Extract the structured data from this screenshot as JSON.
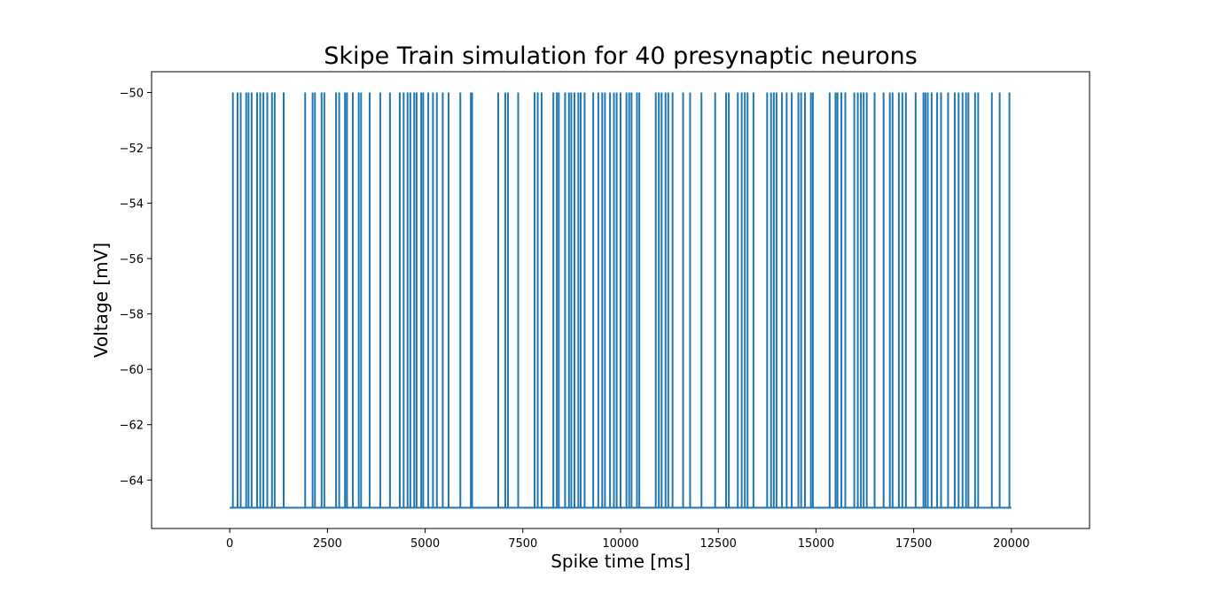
{
  "chart_data": {
    "type": "line",
    "title": "Skipe Train simulation for 40 presynaptic neurons",
    "xlabel": "Spike time [ms]",
    "ylabel": "Voltage [mV]",
    "xlim": [
      -2000,
      22000
    ],
    "ylim": [
      -65.75,
      -49.25
    ],
    "xticks": [
      0,
      2500,
      5000,
      7500,
      10000,
      12500,
      15000,
      17500,
      20000
    ],
    "yticks": [
      -50,
      -52,
      -54,
      -56,
      -58,
      -60,
      -62,
      -64
    ],
    "ytick_labels": [
      "−50",
      "−52",
      "−54",
      "−56",
      "−58",
      "−60",
      "−62",
      "−64"
    ],
    "grid": false,
    "legend": "none",
    "series": [
      {
        "color": "#1f77b4",
        "baseline": -65,
        "peak": -50,
        "x_start": 0,
        "x_end": 20000,
        "spike_times": [
          80,
          200,
          280,
          420,
          480,
          560,
          700,
          780,
          860,
          960,
          1080,
          1150,
          1380,
          1930,
          2120,
          2180,
          2350,
          2420,
          2720,
          2800,
          2950,
          3000,
          3150,
          3300,
          3360,
          3580,
          3850,
          4100,
          4350,
          4450,
          4550,
          4620,
          4720,
          4780,
          4900,
          4950,
          5080,
          5200,
          5300,
          5450,
          5600,
          5900,
          6170,
          6200,
          6870,
          7050,
          7120,
          7380,
          7800,
          7880,
          7980,
          8280,
          8370,
          8420,
          8580,
          8680,
          8740,
          8820,
          8920,
          8980,
          9080,
          9300,
          9430,
          9530,
          9600,
          9730,
          9830,
          9900,
          10000,
          10150,
          10220,
          10280,
          10420,
          10480,
          10900,
          10980,
          11050,
          11150,
          11220,
          11330,
          11600,
          11780,
          12070,
          12420,
          12700,
          12770,
          13000,
          13100,
          13180,
          13250,
          13400,
          13750,
          13850,
          13920,
          13990,
          14130,
          14250,
          14380,
          14550,
          14620,
          14720,
          14870,
          14920,
          15350,
          15500,
          15550,
          15650,
          15750,
          15980,
          16070,
          16150,
          16220,
          16300,
          16500,
          16730,
          16890,
          16960,
          17120,
          17210,
          17300,
          17550,
          17750,
          17800,
          17860,
          17960,
          18100,
          18200,
          18380,
          18550,
          18650,
          18750,
          18840,
          18900,
          19070,
          19150,
          19500,
          19700,
          19950
        ]
      }
    ]
  }
}
